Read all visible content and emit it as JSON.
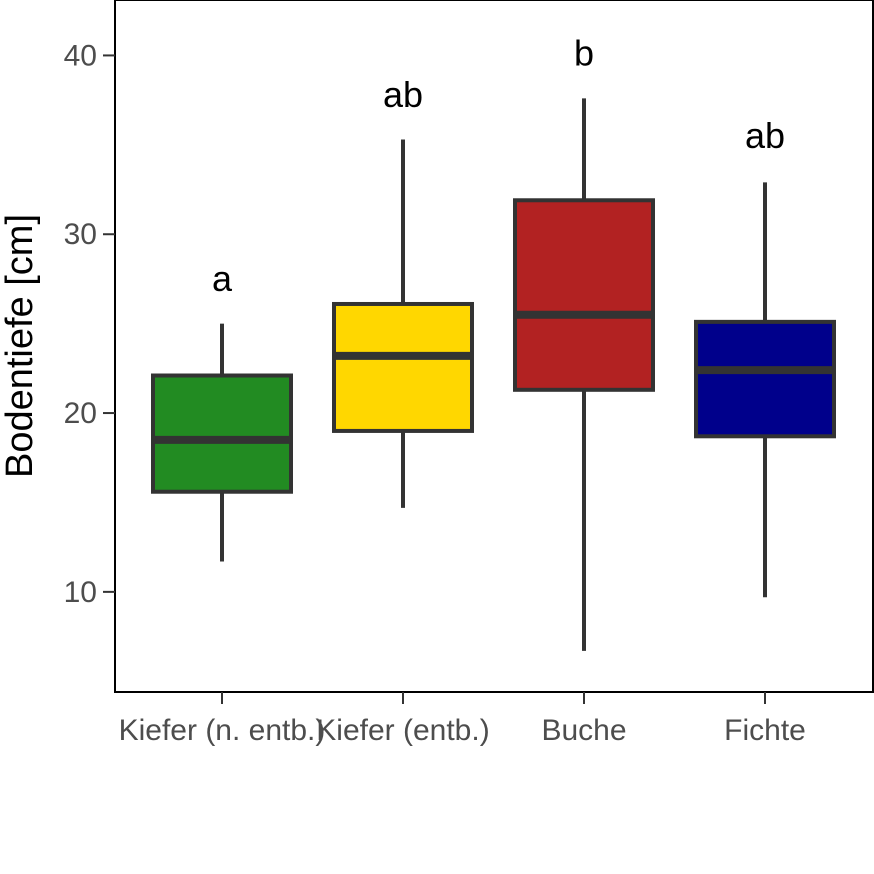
{
  "chart_data": {
    "type": "boxplot",
    "ylabel": "Bodentiefe [cm]",
    "xlabel": "",
    "ylim": [
      4.4,
      43.1
    ],
    "yticks": [
      10,
      20,
      30,
      40
    ],
    "grid": false,
    "categories": [
      "Kiefer (n. entb.)",
      "Kiefer (entb.)",
      "Buche",
      "Fichte"
    ],
    "boxes": [
      {
        "category": "Kiefer (n. entb.)",
        "whisker_low": 11.7,
        "q1": 15.6,
        "median": 18.5,
        "q3": 22.1,
        "whisker_high": 25.0,
        "fill": "#228B22",
        "letter": "a",
        "letter_y": 27.5
      },
      {
        "category": "Kiefer (entb.)",
        "whisker_low": 14.7,
        "q1": 19.0,
        "median": 23.2,
        "q3": 26.1,
        "whisker_high": 35.3,
        "fill": "#FFD700",
        "letter": "ab",
        "letter_y": 37.8
      },
      {
        "category": "Buche",
        "whisker_low": 6.7,
        "q1": 21.3,
        "median": 25.5,
        "q3": 31.9,
        "whisker_high": 37.6,
        "fill": "#B22222",
        "letter": "b",
        "letter_y": 40.1
      },
      {
        "category": "Fichte",
        "whisker_low": 9.7,
        "q1": 18.7,
        "median": 22.4,
        "q3": 25.1,
        "whisker_high": 32.9,
        "fill": "#00008B",
        "letter": "ab",
        "letter_y": 35.5
      }
    ]
  }
}
